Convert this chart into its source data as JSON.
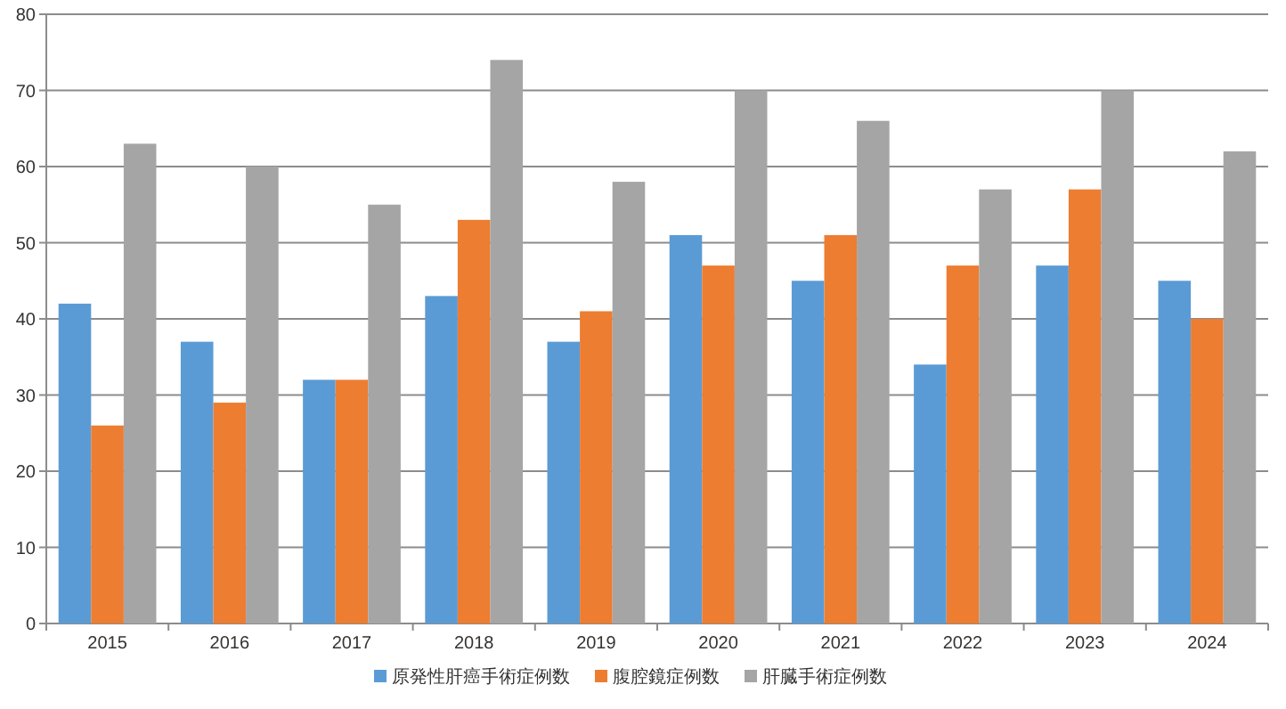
{
  "chart_data": {
    "type": "bar",
    "categories": [
      "2015",
      "2016",
      "2017",
      "2018",
      "2019",
      "2020",
      "2021",
      "2022",
      "2023",
      "2024"
    ],
    "series": [
      {
        "name": "原発性肝癌手術症例数",
        "color": "#5b9bd5",
        "values": [
          42,
          37,
          32,
          43,
          37,
          51,
          45,
          34,
          47,
          45
        ]
      },
      {
        "name": "腹腔鏡症例数",
        "color": "#ed7d31",
        "values": [
          26,
          29,
          32,
          53,
          41,
          47,
          51,
          47,
          57,
          40
        ]
      },
      {
        "name": "肝臓手術症例数",
        "color": "#a5a5a5",
        "values": [
          63,
          60,
          55,
          74,
          58,
          70,
          66,
          57,
          70,
          62
        ]
      }
    ],
    "ylim": [
      0,
      80
    ],
    "yticks": [
      0,
      10,
      20,
      30,
      40,
      50,
      60,
      70,
      80
    ],
    "grid": "y",
    "legend": "bottom"
  }
}
